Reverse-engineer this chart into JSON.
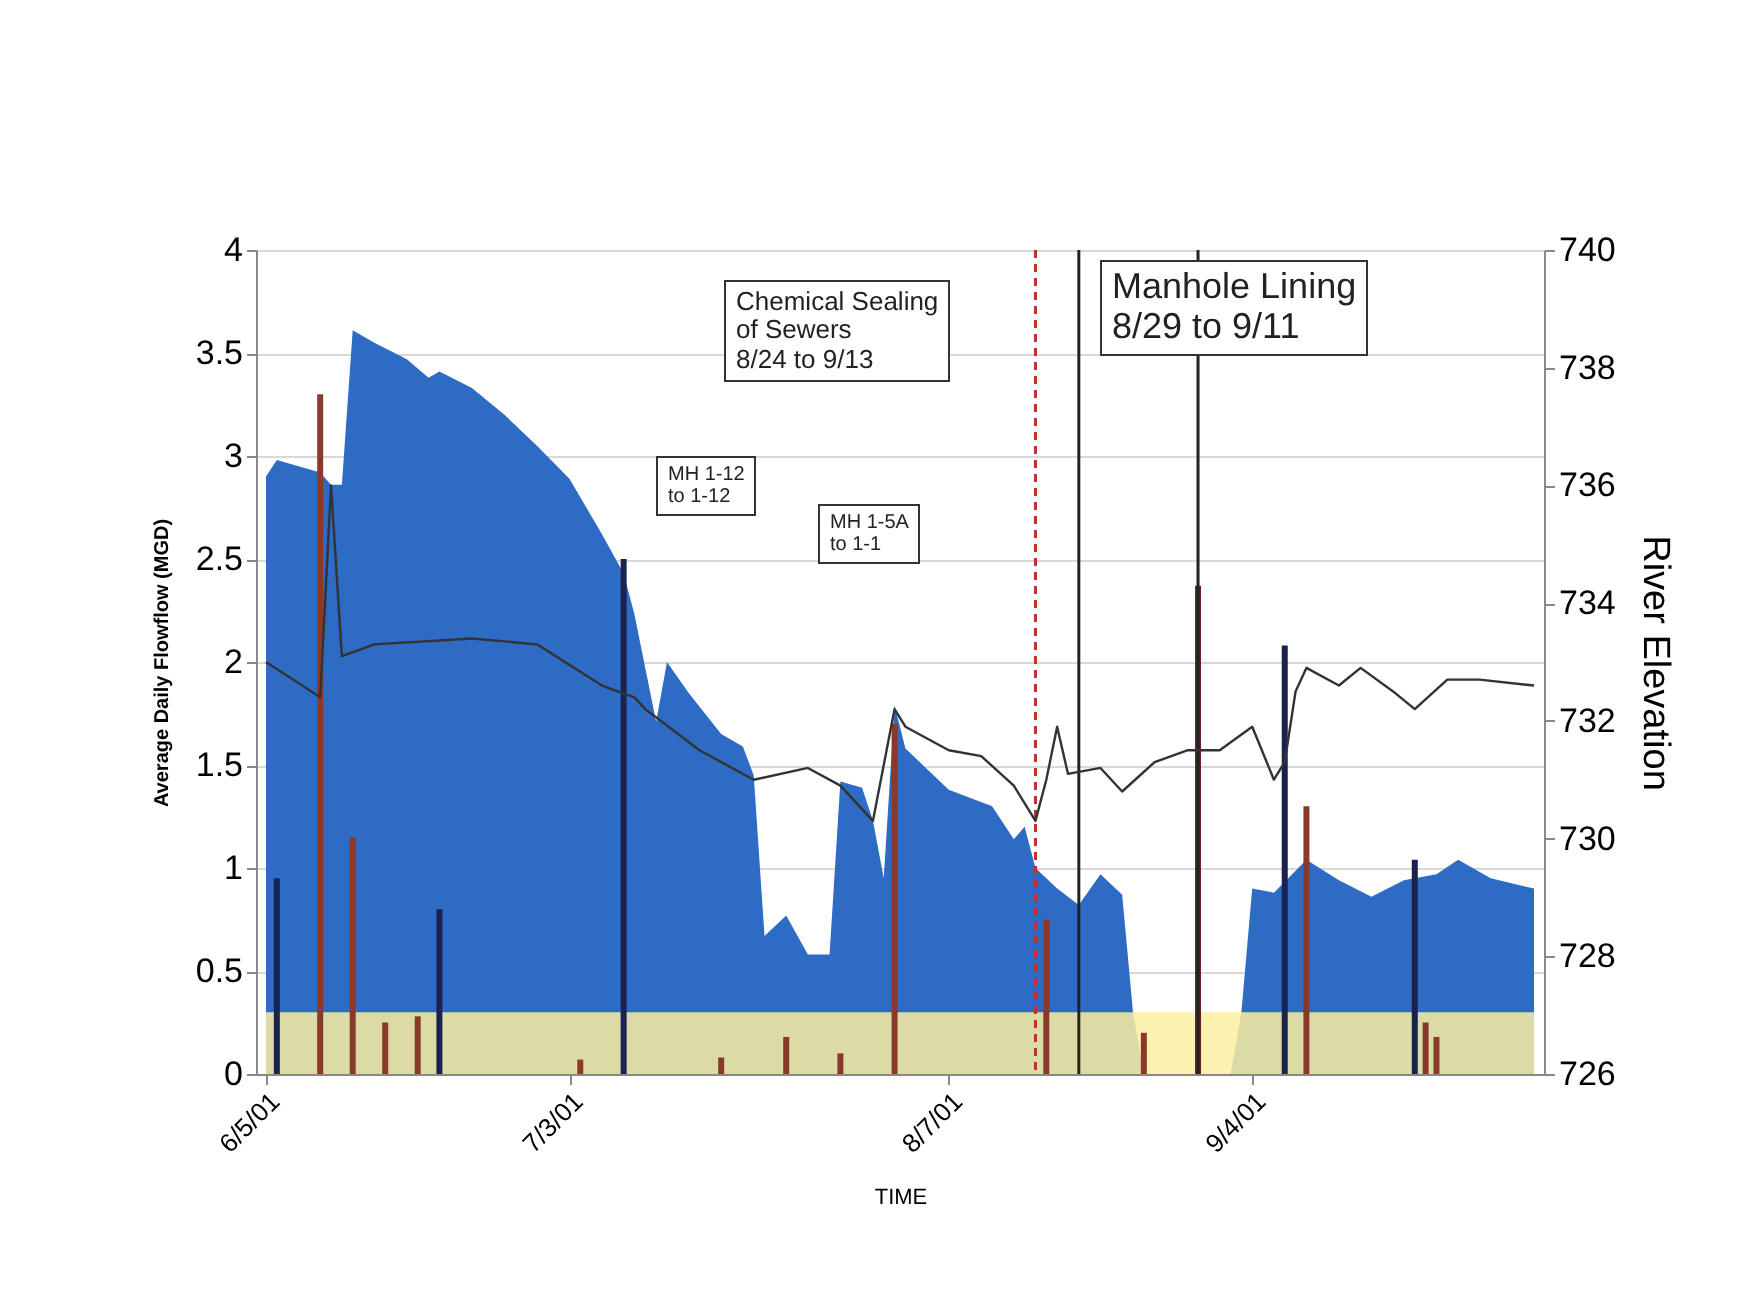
{
  "chart_data": {
    "type": "area",
    "xlabel": "TIME",
    "ylabel": "Average Daily Flowflow (MGD)",
    "y2label": "River Elevation",
    "xlim": [
      "2001-06-05",
      "2001-09-30"
    ],
    "xticks": [
      {
        "value": "2001-06-05",
        "label": "6/5/01"
      },
      {
        "value": "2001-07-03",
        "label": "7/3/01"
      },
      {
        "value": "2001-08-07",
        "label": "8/7/01"
      },
      {
        "value": "2001-09-04",
        "label": "9/4/01"
      }
    ],
    "ylim": [
      0,
      4
    ],
    "yticks": [
      0,
      0.5,
      1,
      1.5,
      2,
      2.5,
      3,
      3.5,
      4
    ],
    "y2lim": [
      726,
      740
    ],
    "y2ticks": [
      726,
      728,
      730,
      732,
      734,
      736,
      738,
      740
    ],
    "grid": "y",
    "series": [
      {
        "color": "#2e6bc4",
        "x": [
          "2001-06-05",
          "2001-06-06",
          "2001-06-10",
          "2001-06-11",
          "2001-06-12",
          "2001-06-13",
          "2001-06-15",
          "2001-06-18",
          "2001-06-20",
          "2001-06-21",
          "2001-06-24",
          "2001-06-27",
          "2001-06-30",
          "2001-07-03",
          "2001-07-06",
          "2001-07-08",
          "2001-07-09",
          "2001-07-10",
          "2001-07-11",
          "2001-07-12",
          "2001-07-14",
          "2001-07-17",
          "2001-07-19",
          "2001-07-20",
          "2001-07-21",
          "2001-07-23",
          "2001-07-25",
          "2001-07-27",
          "2001-07-28",
          "2001-07-30",
          "2001-07-31",
          "2001-08-01",
          "2001-08-02",
          "2001-08-03",
          "2001-08-07",
          "2001-08-11",
          "2001-08-13",
          "2001-08-14",
          "2001-08-15",
          "2001-08-17",
          "2001-08-19",
          "2001-08-21",
          "2001-08-23",
          "2001-08-24",
          "2001-08-25",
          "2001-09-02",
          "2001-09-03",
          "2001-09-04",
          "2001-09-06",
          "2001-09-09",
          "2001-09-12",
          "2001-09-15",
          "2001-09-18",
          "2001-09-21",
          "2001-09-23",
          "2001-09-26",
          "2001-09-30"
        ],
        "values": [
          2.9,
          2.98,
          2.92,
          2.86,
          2.86,
          3.61,
          3.55,
          3.47,
          3.38,
          3.41,
          3.33,
          3.2,
          3.05,
          2.89,
          2.62,
          2.43,
          2.23,
          1.97,
          1.71,
          2.0,
          1.85,
          1.65,
          1.59,
          1.45,
          0.67,
          0.77,
          0.58,
          0.58,
          1.42,
          1.39,
          1.23,
          0.95,
          1.79,
          1.58,
          1.38,
          1.3,
          1.14,
          1.2,
          1.0,
          0.9,
          0.82,
          0.97,
          0.87,
          0.3,
          0,
          0,
          0.3,
          0.9,
          0.88,
          1.04,
          0.94,
          0.86,
          0.94,
          0.97,
          1.04,
          0.95,
          0.9
        ]
      },
      {
        "type": "bar",
        "x": [
          "2001-06-06",
          "2001-06-10",
          "2001-06-13",
          "2001-06-16",
          "2001-06-19",
          "2001-06-21",
          "2001-07-04",
          "2001-07-08",
          "2001-07-17",
          "2001-07-23",
          "2001-07-28",
          "2001-08-02",
          "2001-08-16",
          "2001-08-25",
          "2001-08-30",
          "2001-09-07",
          "2001-09-09",
          "2001-09-19",
          "2001-09-20",
          "2001-09-21"
        ],
        "values": [
          0.95,
          3.3,
          1.15,
          0.25,
          0.28,
          0.8,
          0.07,
          2.5,
          0.08,
          0.18,
          0.1,
          1.7,
          0.75,
          0.2,
          2.37,
          2.08,
          1.3,
          1.04,
          0.25,
          0.18
        ],
        "colors": [
          "#1a2250",
          "#8a3a2a",
          "#8a3a2a",
          "#8a3a2a",
          "#8a3a2a",
          "#1a2250",
          "#8a3a2a",
          "#1a2250",
          "#8a3a2a",
          "#8a3a2a",
          "#8a3a2a",
          "#8a3a2a",
          "#8a3a2a",
          "#8a3a2a",
          "#6a1f2a",
          "#1a2250",
          "#8a3a2a",
          "#1a2250",
          "#8a3a2a",
          "#8a3a2a"
        ]
      },
      {
        "type": "line",
        "axis": "y2",
        "color": "#333333",
        "x": [
          "2001-06-05",
          "2001-06-10",
          "2001-06-11",
          "2001-06-12",
          "2001-06-15",
          "2001-06-24",
          "2001-06-30",
          "2001-07-06",
          "2001-07-09",
          "2001-07-10",
          "2001-07-15",
          "2001-07-20",
          "2001-07-25",
          "2001-07-28",
          "2001-07-31",
          "2001-08-02",
          "2001-08-03",
          "2001-08-07",
          "2001-08-10",
          "2001-08-13",
          "2001-08-15",
          "2001-08-16",
          "2001-08-17",
          "2001-08-18",
          "2001-08-21",
          "2001-08-23",
          "2001-08-26",
          "2001-08-29",
          "2001-09-01",
          "2001-09-04",
          "2001-09-06",
          "2001-09-07",
          "2001-09-08",
          "2001-09-09",
          "2001-09-12",
          "2001-09-14",
          "2001-09-17",
          "2001-09-19",
          "2001-09-22",
          "2001-09-25",
          "2001-09-30"
        ],
        "values": [
          733.0,
          732.4,
          736.0,
          733.1,
          733.3,
          733.4,
          733.3,
          732.6,
          732.4,
          732.2,
          731.5,
          731.0,
          731.2,
          730.9,
          730.3,
          732.2,
          731.9,
          731.5,
          731.4,
          730.9,
          730.3,
          731.0,
          731.9,
          731.1,
          731.2,
          730.8,
          731.3,
          731.5,
          731.5,
          731.9,
          731.0,
          731.3,
          732.5,
          732.9,
          732.6,
          732.9,
          732.5,
          732.2,
          732.7,
          732.7,
          732.6
        ]
      }
    ],
    "bands": [
      {
        "axis": "y",
        "from": 0,
        "to": 0.3,
        "color": "#fbeea0"
      }
    ],
    "ref_lines": [
      {
        "axis": "x",
        "value": "2001-08-15",
        "color": "#c03030",
        "line_style": "dashed"
      },
      {
        "axis": "x",
        "value": "2001-08-19",
        "color": "#222222",
        "line_style": "solid"
      },
      {
        "axis": "x",
        "value": "2001-08-30",
        "color": "#222222",
        "line_style": "solid"
      }
    ],
    "annotations": [
      "Chemical Sealing\nof Sewers\n8/24 to 9/13",
      "Manhole Lining\n8/29 to 9/11",
      "MH 1-12\nto 1-12",
      "MH 1-5A\nto 1-1"
    ]
  }
}
